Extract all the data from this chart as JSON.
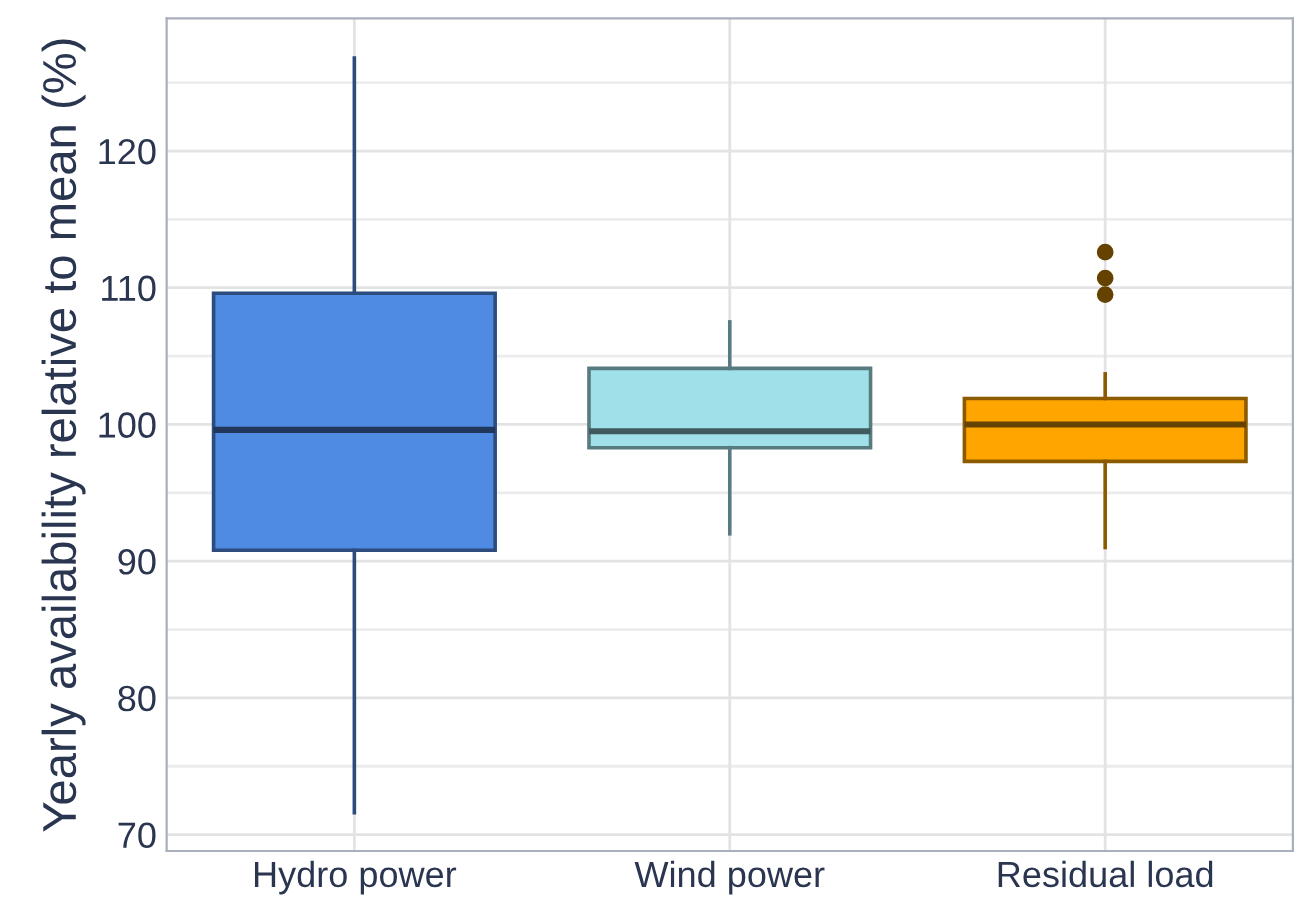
{
  "chart_data": {
    "type": "box",
    "ylabel": "Yearly availability relative to mean (%)",
    "categories": [
      "Hydro power",
      "Wind power",
      "Residual load"
    ],
    "boxes": [
      {
        "low": 71.6,
        "q1": 90.8,
        "median": 99.6,
        "q3": 109.6,
        "high": 126.8
      },
      {
        "low": 92.0,
        "q1": 98.3,
        "median": 99.5,
        "q3": 104.1,
        "high": 107.5
      },
      {
        "low": 91.0,
        "q1": 97.3,
        "median": 100.0,
        "q3": 101.9,
        "high": 103.7,
        "outliers": [
          109.5,
          110.7,
          112.6
        ]
      }
    ],
    "colors": [
      "#4f8ae3",
      "#a0e0e8",
      "#ffa500"
    ],
    "ylim": [
      68.8,
      129.7
    ],
    "yticks": [
      70,
      80,
      90,
      100,
      110,
      120
    ],
    "grid": true
  }
}
